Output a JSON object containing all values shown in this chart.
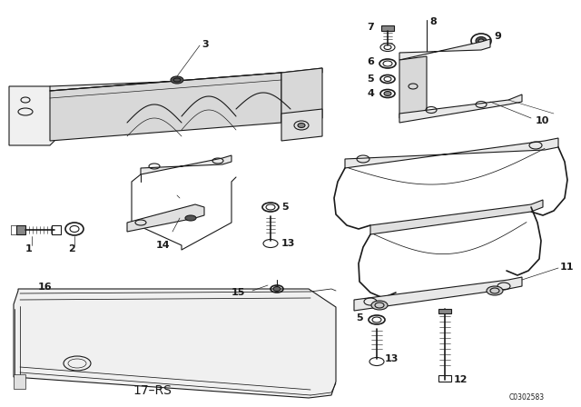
{
  "bg_color": "#ffffff",
  "line_color": "#1a1a1a",
  "watermark": "C0302583",
  "label_17rs": "17-RS"
}
